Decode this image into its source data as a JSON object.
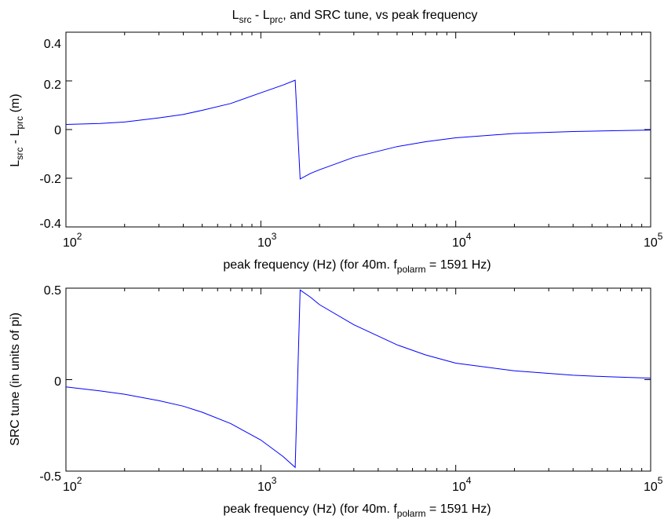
{
  "figure": {
    "title": {
      "pre": "L",
      "sub1": "src",
      "mid": " - L",
      "sub2": "prc",
      "post": ", and SRC tune, vs peak frequency"
    }
  },
  "chart_data": [
    {
      "type": "line",
      "xscale": "log",
      "xlim": [
        100,
        100000
      ],
      "ylim": [
        -0.4,
        0.4
      ],
      "grid": false,
      "ylabel": {
        "pre": "L",
        "sub1": "src",
        "mid": " - L",
        "sub2": "prc",
        "post": " (m)"
      },
      "xlabel": {
        "pre": "peak frequency (Hz) (for 40m. f",
        "sub": "polarm",
        "post": " = 1591 Hz)"
      },
      "ytick_labels": [
        "0.4",
        "0.2",
        "0",
        "-0.2",
        "-0.4"
      ],
      "ytick_values": [
        0.4,
        0.2,
        0,
        -0.2,
        -0.4
      ],
      "xtick_labels": [
        {
          "base": "10",
          "exp": "2"
        },
        {
          "base": "10",
          "exp": "3"
        },
        {
          "base": "10",
          "exp": "4"
        },
        {
          "base": "10",
          "exp": "5"
        }
      ],
      "series": [
        {
          "color": "#0000ff",
          "x": [
            100,
            150,
            200,
            300,
            400,
            500,
            700,
            1000,
            1300,
            1500,
            1591,
            1800,
            2000,
            3000,
            5000,
            7000,
            10000,
            20000,
            40000,
            60000,
            100000
          ],
          "y": [
            0.021,
            0.025,
            0.031,
            0.048,
            0.062,
            0.079,
            0.107,
            0.151,
            0.183,
            0.203,
            -0.203,
            -0.18,
            -0.165,
            -0.114,
            -0.07,
            -0.05,
            -0.034,
            -0.016,
            -0.008,
            -0.005,
            -0.002
          ]
        }
      ]
    },
    {
      "type": "line",
      "xscale": "log",
      "xlim": [
        100,
        100000
      ],
      "ylim": [
        -0.5,
        0.5
      ],
      "grid": false,
      "ylabel": "SRC tune (in units of pi)",
      "xlabel": {
        "pre": "peak frequency (Hz) (for 40m. f",
        "sub": "polarm",
        "post": " = 1591 Hz)"
      },
      "ytick_labels": [
        "0.5",
        "0",
        "-0.5"
      ],
      "ytick_values": [
        0.5,
        0,
        -0.5
      ],
      "xtick_labels": [
        {
          "base": "10",
          "exp": "2"
        },
        {
          "base": "10",
          "exp": "3"
        },
        {
          "base": "10",
          "exp": "4"
        },
        {
          "base": "10",
          "exp": "5"
        }
      ],
      "series": [
        {
          "color": "#0000ff",
          "x": [
            100,
            150,
            200,
            300,
            400,
            500,
            700,
            1000,
            1300,
            1500,
            1591,
            1800,
            2000,
            3000,
            5000,
            7000,
            10000,
            20000,
            40000,
            60000,
            100000
          ],
          "y": [
            -0.04,
            -0.062,
            -0.08,
            -0.115,
            -0.145,
            -0.178,
            -0.24,
            -0.33,
            -0.42,
            -0.48,
            0.49,
            0.45,
            0.41,
            0.3,
            0.19,
            0.135,
            0.09,
            0.048,
            0.024,
            0.016,
            0.008
          ]
        }
      ]
    }
  ]
}
